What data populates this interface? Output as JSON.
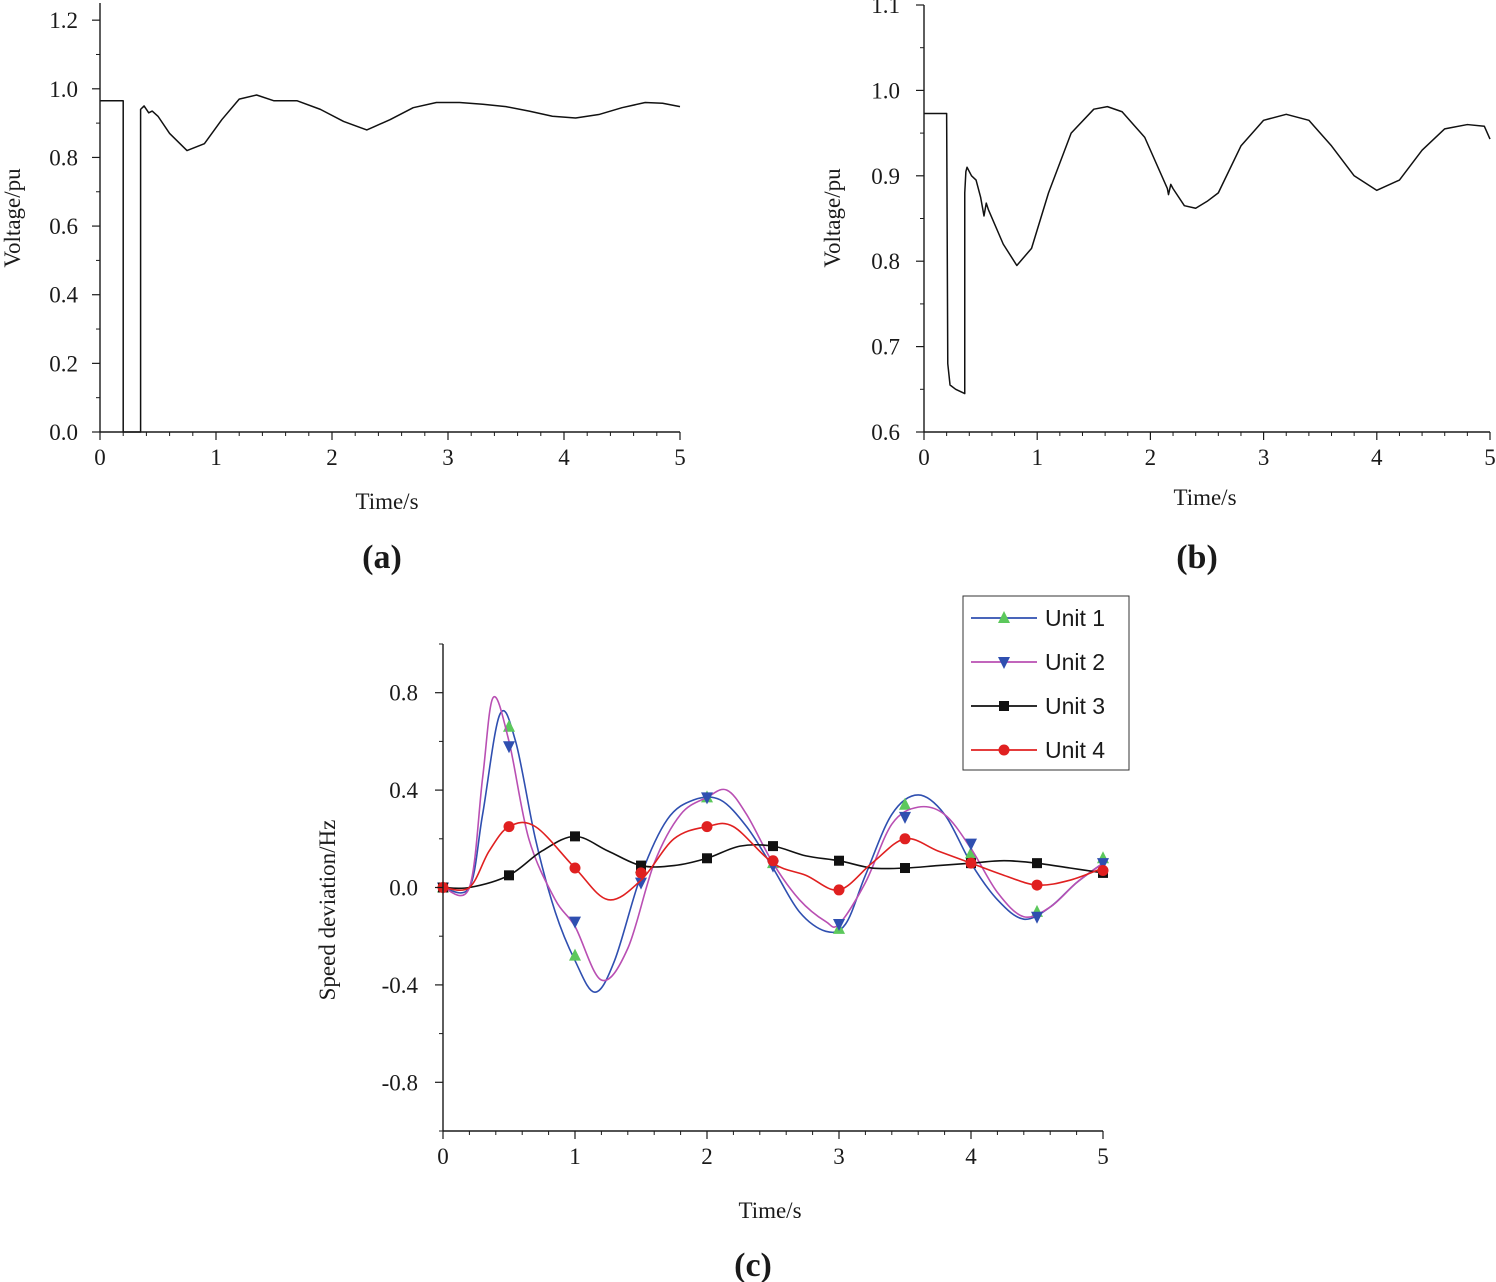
{
  "chart_data": [
    {
      "id": "a",
      "type": "line",
      "panel_label": "(a)",
      "xlabel": "Time/s",
      "ylabel": "Voltage/pu",
      "xlim": [
        0,
        5
      ],
      "ylim": [
        0,
        1.25
      ],
      "xticks": [
        0,
        1,
        2,
        3,
        4,
        5
      ],
      "xtick_labels": [
        "0",
        "1",
        "2",
        "3",
        "4",
        "5"
      ],
      "yticks": [
        0,
        0.2,
        0.4,
        0.6,
        0.8,
        1.0,
        1.2
      ],
      "ytick_labels": [
        "0.0",
        "0.2",
        "0.4",
        "0.6",
        "0.8",
        "1.0",
        "1.2"
      ],
      "series": [
        {
          "name": "Voltage",
          "color": "#111111",
          "x": [
            0,
            0.2,
            0.2,
            0.35,
            0.35,
            0.38,
            0.42,
            0.45,
            0.5,
            0.6,
            0.75,
            0.9,
            1.05,
            1.2,
            1.35,
            1.5,
            1.7,
            1.9,
            2.1,
            2.3,
            2.5,
            2.7,
            2.9,
            3.1,
            3.3,
            3.5,
            3.7,
            3.9,
            4.1,
            4.3,
            4.5,
            4.7,
            4.85,
            5.0
          ],
          "y": [
            0.965,
            0.965,
            0.0,
            0.0,
            0.94,
            0.95,
            0.93,
            0.935,
            0.92,
            0.87,
            0.82,
            0.84,
            0.91,
            0.97,
            0.982,
            0.965,
            0.965,
            0.94,
            0.905,
            0.88,
            0.91,
            0.945,
            0.96,
            0.96,
            0.955,
            0.948,
            0.935,
            0.92,
            0.915,
            0.925,
            0.945,
            0.96,
            0.958,
            0.948
          ]
        }
      ]
    },
    {
      "id": "b",
      "type": "line",
      "panel_label": "(b)",
      "xlabel": "Time/s",
      "ylabel": "Voltage/pu",
      "xlim": [
        0,
        5
      ],
      "ylim": [
        0.6,
        1.1
      ],
      "xticks": [
        0,
        1,
        2,
        3,
        4,
        5
      ],
      "xtick_labels": [
        "0",
        "1",
        "2",
        "3",
        "4",
        "5"
      ],
      "yticks": [
        0.6,
        0.7,
        0.8,
        0.9,
        1.0,
        1.1
      ],
      "ytick_labels": [
        "0.6",
        "0.7",
        "0.8",
        "0.9",
        "1.0",
        "1.1"
      ],
      "series": [
        {
          "name": "Voltage",
          "color": "#111111",
          "x": [
            0,
            0.2,
            0.2,
            0.21,
            0.23,
            0.28,
            0.36,
            0.36,
            0.37,
            0.38,
            0.42,
            0.46,
            0.5,
            0.53,
            0.55,
            0.57,
            0.7,
            0.82,
            0.95,
            1.1,
            1.3,
            1.5,
            1.62,
            1.75,
            1.95,
            2.15,
            2.16,
            2.18,
            2.2,
            2.3,
            2.4,
            2.5,
            2.6,
            2.8,
            3.0,
            3.2,
            3.4,
            3.6,
            3.8,
            4.0,
            4.2,
            4.4,
            4.6,
            4.8,
            4.95,
            5.0
          ],
          "y": [
            0.973,
            0.973,
            0.973,
            0.68,
            0.655,
            0.65,
            0.645,
            0.88,
            0.905,
            0.91,
            0.9,
            0.895,
            0.875,
            0.853,
            0.868,
            0.86,
            0.82,
            0.795,
            0.815,
            0.88,
            0.95,
            0.978,
            0.981,
            0.975,
            0.945,
            0.885,
            0.878,
            0.89,
            0.885,
            0.865,
            0.862,
            0.87,
            0.88,
            0.935,
            0.965,
            0.972,
            0.965,
            0.935,
            0.9,
            0.883,
            0.895,
            0.93,
            0.955,
            0.96,
            0.958,
            0.943
          ]
        }
      ]
    },
    {
      "id": "c",
      "type": "line",
      "panel_label": "(c)",
      "xlabel": "Time/s",
      "ylabel": "Speed deviation/Hz",
      "xlim": [
        0,
        5
      ],
      "ylim": [
        -1.0,
        1.0
      ],
      "xticks": [
        0,
        1,
        2,
        3,
        4,
        5
      ],
      "xtick_labels": [
        "0",
        "1",
        "2",
        "3",
        "4",
        "5"
      ],
      "yticks": [
        -0.8,
        -0.4,
        0.0,
        0.4,
        0.8
      ],
      "ytick_labels": [
        "-0.8",
        "-0.4",
        "0.0",
        "0.4",
        "0.8"
      ],
      "legend_position": "top-right",
      "series": [
        {
          "name": "Unit 1",
          "color": "#2f4fb0",
          "marker": "triangle-up",
          "marker_color": "#5cc85c",
          "x": [
            0,
            0.2,
            0.3,
            0.43,
            0.55,
            0.7,
            0.85,
            1.0,
            1.15,
            1.3,
            1.5,
            1.7,
            1.9,
            2.1,
            2.3,
            2.5,
            2.7,
            2.9,
            3.05,
            3.2,
            3.4,
            3.6,
            3.8,
            4.0,
            4.2,
            4.4,
            4.6,
            4.8,
            5.0
          ],
          "y": [
            0,
            0,
            0.3,
            0.71,
            0.6,
            0.2,
            -0.1,
            -0.3,
            -0.43,
            -0.3,
            0.05,
            0.28,
            0.36,
            0.36,
            0.25,
            0.08,
            -0.1,
            -0.18,
            -0.15,
            0.05,
            0.3,
            0.38,
            0.3,
            0.1,
            -0.05,
            -0.13,
            -0.08,
            0.02,
            0.1
          ],
          "marker_x": [
            0,
            0.5,
            1.0,
            1.5,
            2.0,
            2.5,
            3.0,
            3.5,
            4.0,
            4.5,
            5.0
          ],
          "marker_y": [
            0,
            0.66,
            -0.28,
            0.08,
            0.37,
            0.1,
            -0.17,
            0.34,
            0.14,
            -0.1,
            0.12
          ]
        },
        {
          "name": "Unit 2",
          "color": "#b94fb3",
          "marker": "triangle-down",
          "marker_color": "#2f4fb0",
          "x": [
            0,
            0.2,
            0.3,
            0.38,
            0.5,
            0.65,
            0.85,
            1.0,
            1.2,
            1.4,
            1.6,
            1.8,
            2.0,
            2.15,
            2.3,
            2.5,
            2.7,
            2.9,
            3.0,
            3.2,
            3.4,
            3.6,
            3.8,
            4.0,
            4.2,
            4.4,
            4.6,
            4.8,
            5.0
          ],
          "y": [
            0,
            0,
            0.45,
            0.78,
            0.6,
            0.2,
            -0.05,
            -0.16,
            -0.38,
            -0.25,
            0.1,
            0.3,
            0.37,
            0.4,
            0.3,
            0.1,
            -0.05,
            -0.14,
            -0.15,
            0.02,
            0.26,
            0.33,
            0.3,
            0.16,
            -0.02,
            -0.12,
            -0.08,
            0.02,
            0.1
          ],
          "marker_x": [
            0,
            0.5,
            1.0,
            1.5,
            2.0,
            2.5,
            3.0,
            3.5,
            4.0,
            4.5,
            5.0
          ],
          "marker_y": [
            0,
            0.58,
            -0.14,
            0.02,
            0.37,
            0.09,
            -0.15,
            0.29,
            0.18,
            -0.12,
            0.1
          ]
        },
        {
          "name": "Unit 3",
          "color": "#111111",
          "marker": "square",
          "marker_color": "#111111",
          "x": [
            0,
            0.2,
            0.5,
            0.75,
            1.0,
            1.25,
            1.5,
            1.75,
            2.0,
            2.25,
            2.5,
            2.75,
            3.0,
            3.25,
            3.5,
            3.75,
            4.0,
            4.25,
            4.5,
            4.75,
            5.0
          ],
          "y": [
            0,
            0,
            0.05,
            0.15,
            0.21,
            0.15,
            0.09,
            0.09,
            0.12,
            0.17,
            0.17,
            0.13,
            0.11,
            0.08,
            0.08,
            0.09,
            0.1,
            0.11,
            0.1,
            0.08,
            0.06
          ],
          "marker_x": [
            0,
            0.5,
            1.0,
            1.5,
            2.0,
            2.5,
            3.0,
            3.5,
            4.0,
            4.5,
            5.0
          ],
          "marker_y": [
            0,
            0.05,
            0.21,
            0.09,
            0.12,
            0.17,
            0.11,
            0.08,
            0.1,
            0.1,
            0.06
          ]
        },
        {
          "name": "Unit 4",
          "color": "#e02020",
          "marker": "circle",
          "marker_color": "#e02020",
          "x": [
            0,
            0.2,
            0.35,
            0.5,
            0.7,
            1.0,
            1.25,
            1.5,
            1.75,
            2.0,
            2.2,
            2.5,
            2.75,
            3.0,
            3.25,
            3.5,
            3.75,
            4.0,
            4.25,
            4.5,
            4.75,
            5.0
          ],
          "y": [
            0,
            0,
            0.15,
            0.25,
            0.25,
            0.08,
            -0.05,
            0.03,
            0.2,
            0.25,
            0.25,
            0.1,
            0.05,
            -0.01,
            0.1,
            0.2,
            0.15,
            0.1,
            0.05,
            0.01,
            0.03,
            0.08
          ],
          "marker_x": [
            0,
            0.5,
            1.0,
            1.5,
            2.0,
            2.5,
            3.0,
            3.5,
            4.0,
            4.5,
            5.0
          ],
          "marker_y": [
            0,
            0.25,
            0.08,
            0.06,
            0.25,
            0.11,
            -0.01,
            0.2,
            0.1,
            0.01,
            0.07
          ]
        }
      ]
    }
  ]
}
